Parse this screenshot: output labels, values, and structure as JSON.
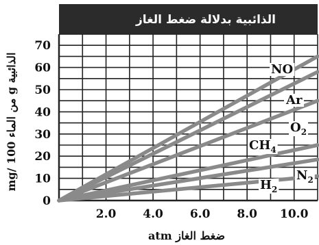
{
  "chart_data": {
    "type": "line",
    "title": "الذائبية بدلالة ضغط الغاز",
    "xlabel": "atm  ضغط الغاز",
    "ylabel": "mg/ من الماء 100 g الذائبية",
    "xlim": [
      0,
      11
    ],
    "ylim": [
      0,
      75
    ],
    "x_ticks": [
      "2.0",
      "4.0",
      "6.0",
      "8.0",
      "10.0"
    ],
    "x_tick_values": [
      2,
      4,
      6,
      8,
      10
    ],
    "y_ticks": [
      "0",
      "10",
      "20",
      "30",
      "40",
      "50",
      "60",
      "70"
    ],
    "y_tick_values": [
      0,
      10,
      20,
      30,
      40,
      50,
      60,
      70
    ],
    "grid": true,
    "line_color": "#8a8a8a",
    "grid_color": "#222222",
    "title_bg": "#2b2b2b",
    "series": [
      {
        "name": "NO",
        "label_main": "NO",
        "label_sub": "",
        "x": [
          0,
          11
        ],
        "y": [
          0,
          65
        ]
      },
      {
        "name": "Ar",
        "label_main": "Ar",
        "label_sub": "",
        "x": [
          0,
          11
        ],
        "y": [
          0,
          58
        ]
      },
      {
        "name": "O2",
        "label_main": "O",
        "label_sub": "2",
        "x": [
          0,
          11
        ],
        "y": [
          0,
          45
        ]
      },
      {
        "name": "CH4",
        "label_main": "CH",
        "label_sub": "4",
        "x": [
          0,
          11
        ],
        "y": [
          0,
          25
        ]
      },
      {
        "name": "N2",
        "label_main": "N",
        "label_sub": "2",
        "x": [
          0,
          11
        ],
        "y": [
          0,
          18.5
        ]
      },
      {
        "name": "H2",
        "label_main": "H",
        "label_sub": "2",
        "x": [
          0,
          11
        ],
        "y": [
          0,
          11
        ]
      }
    ]
  }
}
